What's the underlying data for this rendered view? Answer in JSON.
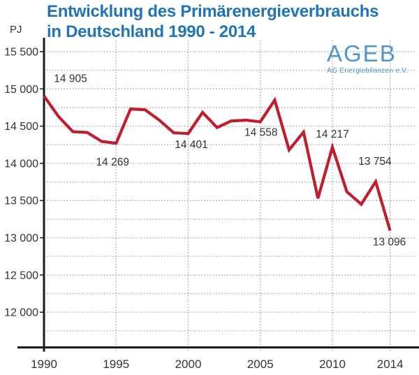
{
  "header": {
    "title_line1": "Entwicklung des Primärenergieverbrauchs",
    "title_line2": "in Deutschland 1990 - 2014"
  },
  "logo": {
    "name": "AGEB",
    "subtitle": "AG Energiebilanzen e.V."
  },
  "colors": {
    "title_blue": "#2174b8",
    "logo_blue": "#4e96cc",
    "line_red": "#be1e2d",
    "axis_black": "#1a1a1a",
    "grid_gray": "#949494",
    "label_gray": "#333333"
  },
  "chart_data": {
    "type": "line",
    "title": "Entwicklung des Primärenergieverbrauchs in Deutschland 1990 - 2014",
    "series_name": "Primärenergieverbrauch",
    "unit": "PJ",
    "ylabel": "PJ",
    "xlabel": "",
    "grid": "dotted",
    "ylim": [
      11750,
      15500
    ],
    "y_gridline_step": 250,
    "x": [
      1990,
      1991,
      1992,
      1993,
      1994,
      1995,
      1996,
      1997,
      1998,
      1999,
      2000,
      2001,
      2002,
      2003,
      2004,
      2005,
      2006,
      2007,
      2008,
      2009,
      2010,
      2011,
      2012,
      2013,
      2014
    ],
    "values": [
      14905,
      14630,
      14425,
      14415,
      14295,
      14269,
      14730,
      14720,
      14580,
      14410,
      14401,
      14685,
      14480,
      14570,
      14580,
      14558,
      14850,
      14180,
      14420,
      13530,
      14217,
      13620,
      13450,
      13754,
      13096
    ],
    "y_ticks": [
      {
        "v": 15500,
        "label": "15 500"
      },
      {
        "v": 15000,
        "label": "15 000"
      },
      {
        "v": 14500,
        "label": "14 500"
      },
      {
        "v": 14000,
        "label": "14 000"
      },
      {
        "v": 13500,
        "label": "13 500"
      },
      {
        "v": 13000,
        "label": "13 000"
      },
      {
        "v": 12500,
        "label": "12 500"
      },
      {
        "v": 12000,
        "label": "12 000"
      }
    ],
    "x_ticks": [
      {
        "v": 1990,
        "label": "1990"
      },
      {
        "v": 1995,
        "label": "1995"
      },
      {
        "v": 2000,
        "label": "2000"
      },
      {
        "v": 2005,
        "label": "2005"
      },
      {
        "v": 2010,
        "label": "2010"
      },
      {
        "v": 2014,
        "label": "2014"
      }
    ],
    "x_gridline_years": [
      1995,
      2000,
      2005,
      2010,
      2014
    ],
    "annotations": [
      {
        "year": 1990,
        "label": "14 905"
      },
      {
        "year": 1995,
        "label": "14 269"
      },
      {
        "year": 2000,
        "label": "14 401"
      },
      {
        "year": 2005,
        "label": "14 558"
      },
      {
        "year": 2010,
        "label": "14 217"
      },
      {
        "year": 2013,
        "label": "13 754"
      },
      {
        "year": 2014,
        "label": "13 096"
      }
    ]
  }
}
